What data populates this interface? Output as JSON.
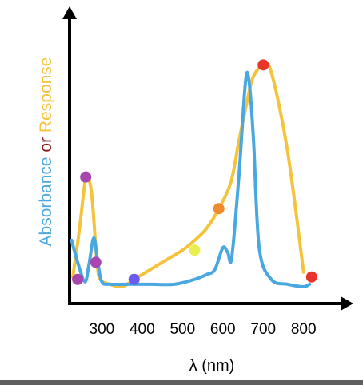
{
  "chart_data": {
    "type": "line",
    "title": "",
    "xlabel": "λ (nm)",
    "ylabel": {
      "parts": [
        {
          "text": "Absorbance",
          "color": "#4aa8e0"
        },
        {
          "text": " or ",
          "color": "#8b1a1a"
        },
        {
          "text": "Response",
          "color": "#f5c33b"
        }
      ]
    },
    "x_ticks": [
      300,
      400,
      500,
      600,
      700,
      800
    ],
    "xlim": [
      220,
      860
    ],
    "ylim": [
      0,
      1
    ],
    "grid": false,
    "legend": "none",
    "series": [
      {
        "color": "#f5c33b",
        "x": [
          228,
          244,
          260,
          268,
          276,
          288,
          296,
          320,
          350,
          380,
          420,
          460,
          500,
          530,
          560,
          590,
          620,
          640,
          660,
          675,
          700,
          720,
          760,
          800
        ],
        "y": [
          0.06,
          0.25,
          0.47,
          0.46,
          0.38,
          0.12,
          0.05,
          0.03,
          0.02,
          0.05,
          0.09,
          0.13,
          0.17,
          0.21,
          0.26,
          0.34,
          0.45,
          0.62,
          0.78,
          0.88,
          0.93,
          0.9,
          0.58,
          0.08
        ]
      },
      {
        "color": "#4aa8e0",
        "x": [
          225,
          240,
          258,
          268,
          280,
          290,
          300,
          320,
          360,
          420,
          480,
          530,
          560,
          580,
          600,
          612,
          622,
          640,
          656,
          665,
          676,
          690,
          720,
          760,
          800,
          815
        ],
        "y": [
          0.21,
          0.12,
          0.04,
          0.11,
          0.22,
          0.12,
          0.04,
          0.03,
          0.03,
          0.03,
          0.03,
          0.05,
          0.07,
          0.09,
          0.18,
          0.16,
          0.14,
          0.48,
          0.86,
          0.86,
          0.62,
          0.18,
          0.05,
          0.03,
          0.02,
          0.03
        ]
      }
    ],
    "markers": [
      {
        "x": 240,
        "y": 0.05,
        "color": "#a845b0"
      },
      {
        "x": 260,
        "y": 0.47,
        "color": "#a845b0"
      },
      {
        "x": 285,
        "y": 0.12,
        "color": "#a845b0"
      },
      {
        "x": 380,
        "y": 0.05,
        "color": "#6b5cf0"
      },
      {
        "x": 530,
        "y": 0.17,
        "color": "#e9ef4f"
      },
      {
        "x": 590,
        "y": 0.34,
        "color": "#f08a30"
      },
      {
        "x": 700,
        "y": 0.93,
        "color": "#e8342b"
      },
      {
        "x": 820,
        "y": 0.06,
        "color": "#e8342b"
      }
    ]
  }
}
